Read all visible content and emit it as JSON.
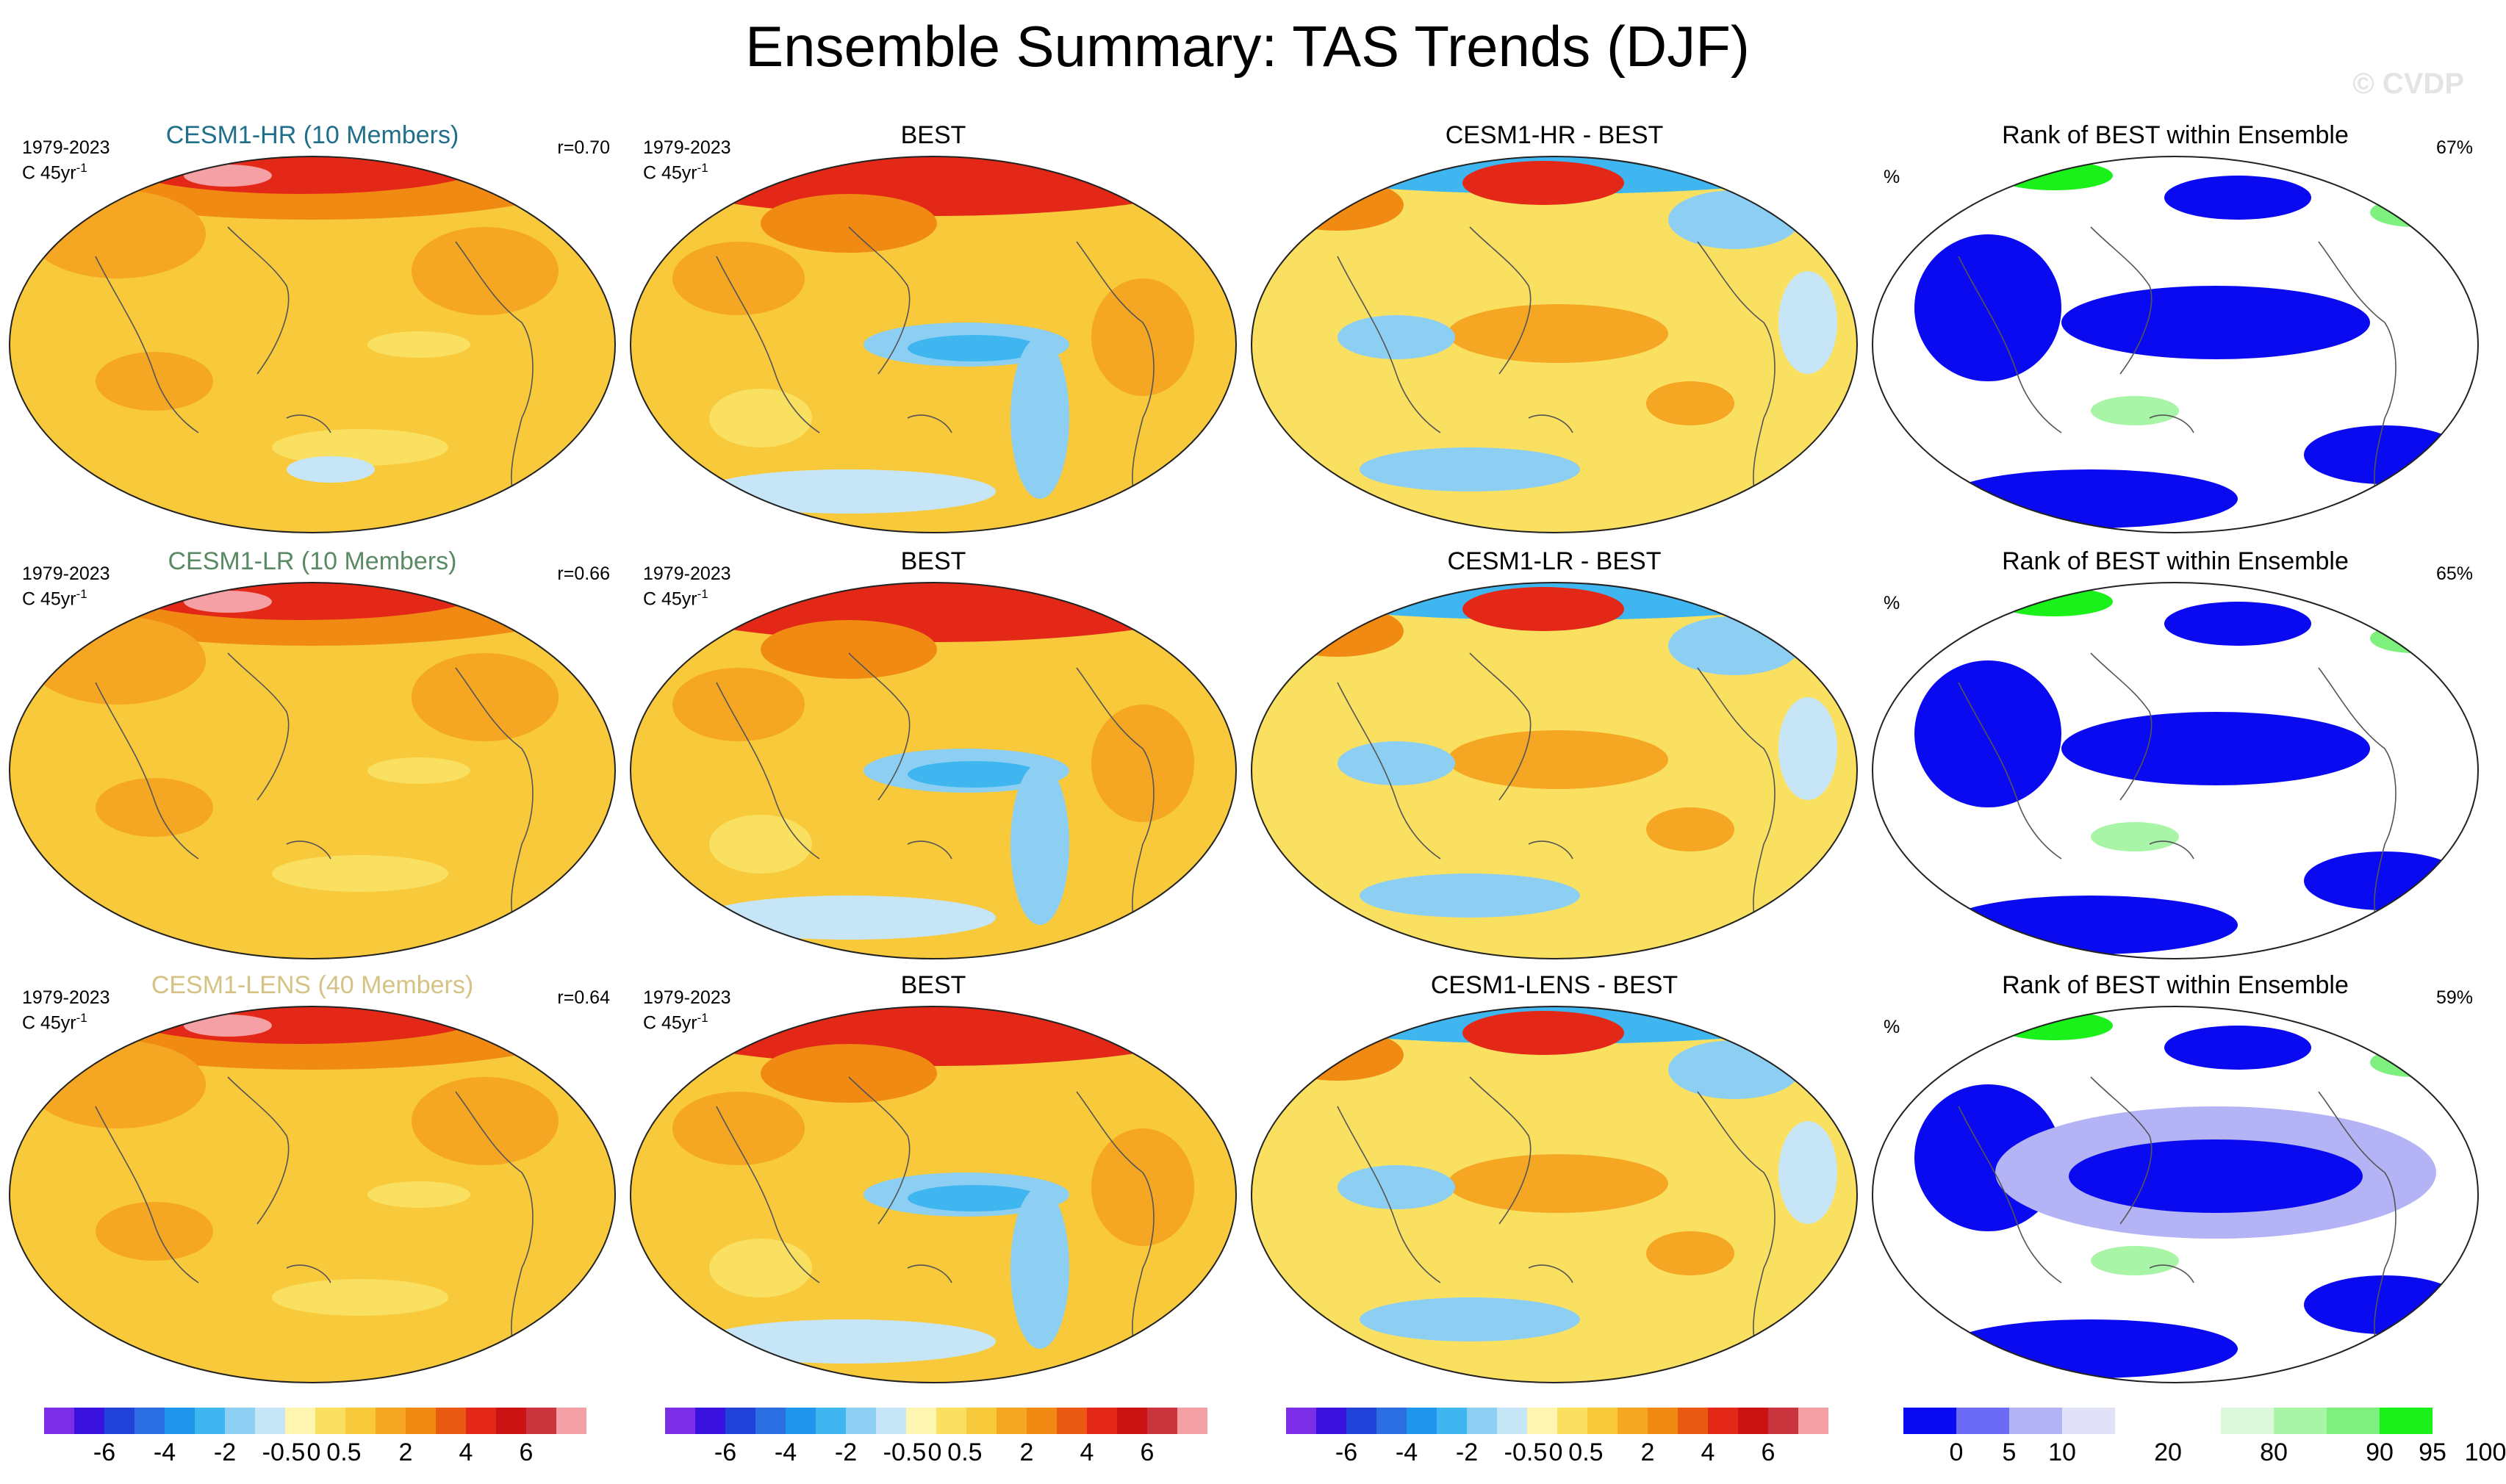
{
  "figure_title": "Ensemble Summary: TAS Trends (DJF)",
  "watermark": "© CVDP",
  "rows": [
    {
      "model": {
        "title": "CESM1-HR (10 Members)",
        "title_color": "#1f6f8b",
        "period": "1979-2023",
        "units_text": "C 45yr",
        "units_exp": "-1",
        "corr": "r=0.70"
      },
      "obs": {
        "title": "BEST",
        "period": "1979-2023",
        "units_text": "C 45yr",
        "units_exp": "-1"
      },
      "diff": {
        "title": "CESM1-HR - BEST"
      },
      "rank": {
        "title": "Rank of BEST within Ensemble",
        "unit": "%",
        "percent": "67%"
      }
    },
    {
      "model": {
        "title": "CESM1-LR (10 Members)",
        "title_color": "#5a8a63",
        "period": "1979-2023",
        "units_text": "C 45yr",
        "units_exp": "-1",
        "corr": "r=0.66"
      },
      "obs": {
        "title": "BEST",
        "period": "1979-2023",
        "units_text": "C 45yr",
        "units_exp": "-1"
      },
      "diff": {
        "title": "CESM1-LR - BEST"
      },
      "rank": {
        "title": "Rank of BEST within Ensemble",
        "unit": "%",
        "percent": "65%"
      }
    },
    {
      "model": {
        "title": "CESM1-LENS (40 Members)",
        "title_color": "#d4c384",
        "period": "1979-2023",
        "units_text": "C 45yr",
        "units_exp": "-1",
        "corr": "r=0.64"
      },
      "obs": {
        "title": "BEST",
        "period": "1979-2023",
        "units_text": "C 45yr",
        "units_exp": "-1"
      },
      "diff": {
        "title": "CESM1-LENS - BEST"
      },
      "rank": {
        "title": "Rank of BEST within Ensemble",
        "unit": "%",
        "percent": "59%"
      }
    }
  ],
  "trend_colorbar": {
    "colors": [
      "#7b2ee6",
      "#3a12e0",
      "#2143d9",
      "#2c6fe3",
      "#1f96ec",
      "#3fb6f0",
      "#8ccff2",
      "#c6e6f8",
      "#fdf5b0",
      "#fae060",
      "#f8c93a",
      "#f5a623",
      "#f18a12",
      "#ea5a12",
      "#e42817",
      "#cc1313",
      "#c9343d",
      "#f5a0a5"
    ],
    "labels": [
      "-6",
      "-4",
      "-2",
      "-0.5",
      "0",
      "0.5",
      "2",
      "4",
      "6"
    ]
  },
  "rank_colorbar": {
    "colors": [
      "#0a0af0",
      "#6b6bf5",
      "#b3b3f5",
      "#e1e1f8",
      "#ffffff",
      "#ffffff",
      "#dcf8dc",
      "#a8f5a8",
      "#7df07d",
      "#1af01a"
    ],
    "labels": [
      "0",
      "5",
      "10",
      "20",
      "80",
      "90",
      "95",
      "100"
    ]
  }
}
